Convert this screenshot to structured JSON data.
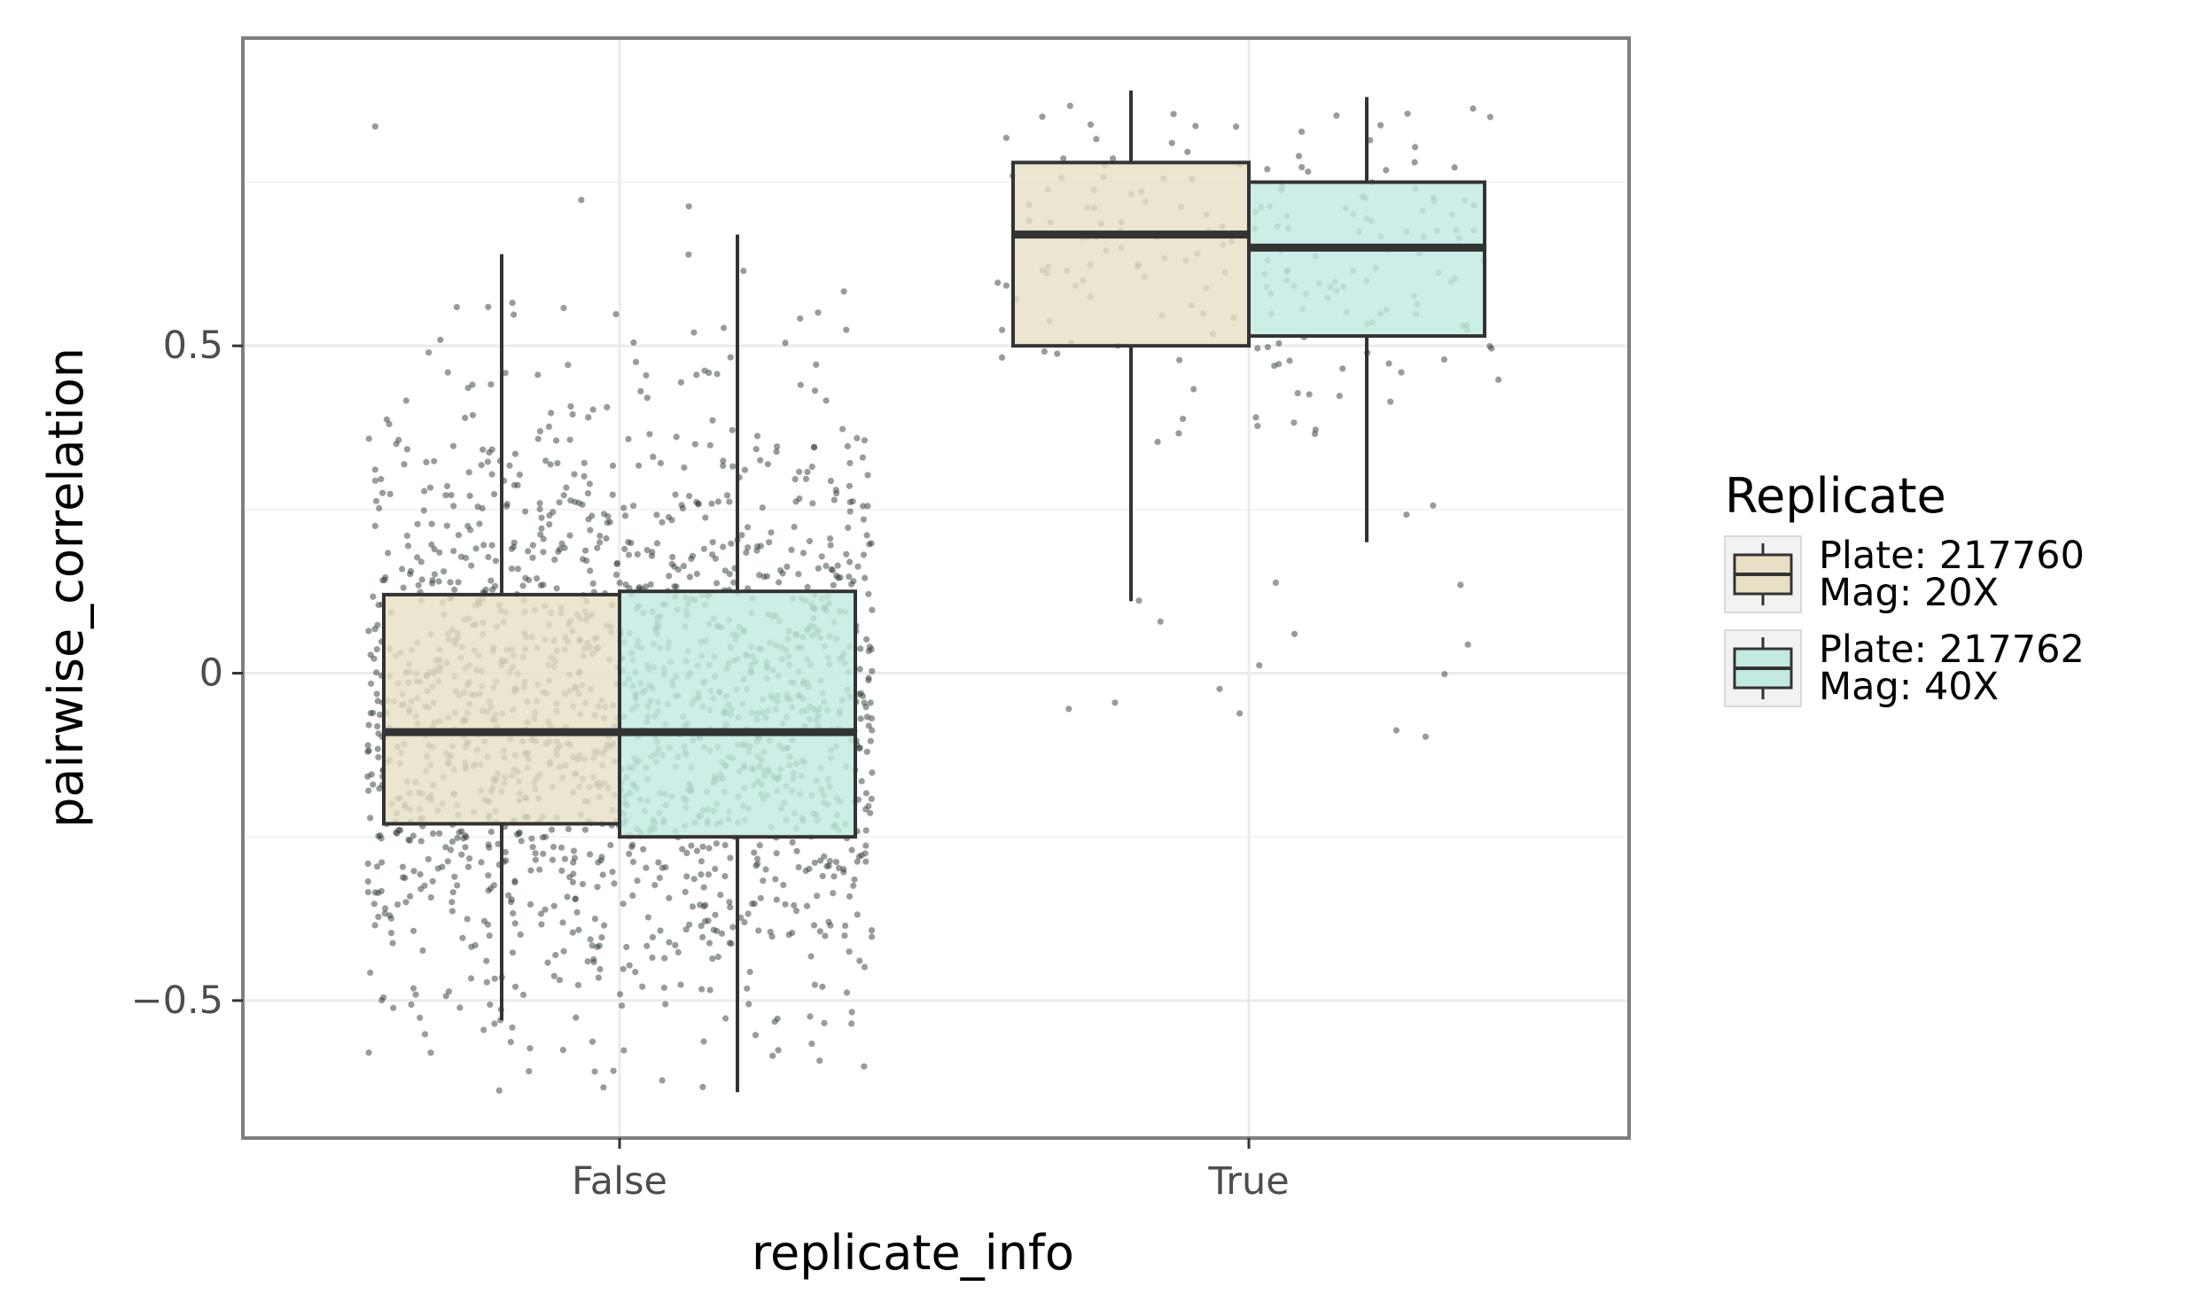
{
  "chart_data": {
    "type": "box",
    "xlabel": "replicate_info",
    "ylabel": "pairwise_correlation",
    "categories": [
      "False",
      "True"
    ],
    "ylim": [
      -0.71,
      0.97
    ],
    "yticks": [
      -0.5,
      0,
      0.5
    ],
    "ytick_labels": [
      "−0.5",
      "0",
      "0.5"
    ],
    "grid": true,
    "legend": {
      "title": "Replicate",
      "position": "right",
      "entries": [
        {
          "line1": "Plate: 217760",
          "line2": "Mag: 20X",
          "color": "#e8dfc5"
        },
        {
          "line1": "Plate: 217762",
          "line2": "Mag: 40X",
          "color": "#c2eae0"
        }
      ]
    },
    "series": [
      {
        "name": "Plate: 217760 Mag: 20X",
        "color": "#e8dfc5",
        "boxes": [
          {
            "category": "False",
            "whisker_low": -0.53,
            "q1": -0.23,
            "median": -0.09,
            "q3": 0.12,
            "whisker_high": 0.64
          },
          {
            "category": "True",
            "whisker_low": 0.11,
            "q1": 0.5,
            "median": 0.67,
            "q3": 0.78,
            "whisker_high": 0.89
          }
        ]
      },
      {
        "name": "Plate: 217762 Mag: 40X",
        "color": "#c2eae0",
        "boxes": [
          {
            "category": "False",
            "whisker_low": -0.64,
            "q1": -0.25,
            "median": -0.09,
            "q3": 0.125,
            "whisker_high": 0.67
          },
          {
            "category": "True",
            "whisker_low": 0.2,
            "q1": 0.515,
            "median": 0.65,
            "q3": 0.75,
            "whisker_high": 0.88
          }
        ]
      }
    ],
    "jitter_points": {
      "color": "#2f3e36",
      "False": {
        "approx_count": 1700,
        "min": -0.64,
        "max": 0.89
      },
      "True": {
        "approx_count": 210,
        "min": -0.11,
        "max": 0.89
      }
    }
  }
}
